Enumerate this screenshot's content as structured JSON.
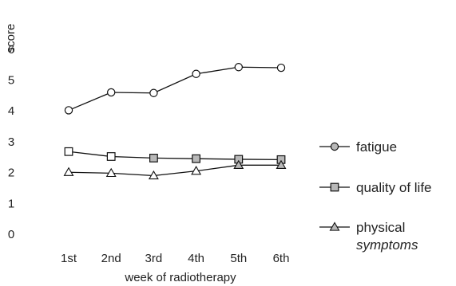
{
  "chart_data": {
    "type": "line",
    "title": "",
    "xlabel": "week of radiotherapy",
    "ylabel": "score",
    "categories": [
      "1st",
      "2nd",
      "3rd",
      "4th",
      "5th",
      "6th"
    ],
    "yticks": [
      0,
      1,
      2,
      3,
      4,
      5,
      6
    ],
    "ylim": [
      0,
      6
    ],
    "grid": false,
    "legend_position": "right",
    "series": [
      {
        "name": "fatigue",
        "marker": "circle",
        "values": [
          4.02,
          4.6,
          4.58,
          5.2,
          5.42,
          5.4
        ]
      },
      {
        "name": "quality of life",
        "marker": "square",
        "values": [
          2.68,
          2.52,
          2.47,
          2.45,
          2.43,
          2.42
        ]
      },
      {
        "name": "physical symptoms",
        "legend_lines": [
          "physical",
          "symptoms"
        ],
        "marker": "triangle",
        "values": [
          2.01,
          1.98,
          1.9,
          2.05,
          2.24,
          2.24
        ]
      }
    ],
    "colors": {
      "line": "#111111",
      "marker_fill_plain": "#ffffff",
      "marker_fill_legend": "#b8b8b8"
    }
  }
}
